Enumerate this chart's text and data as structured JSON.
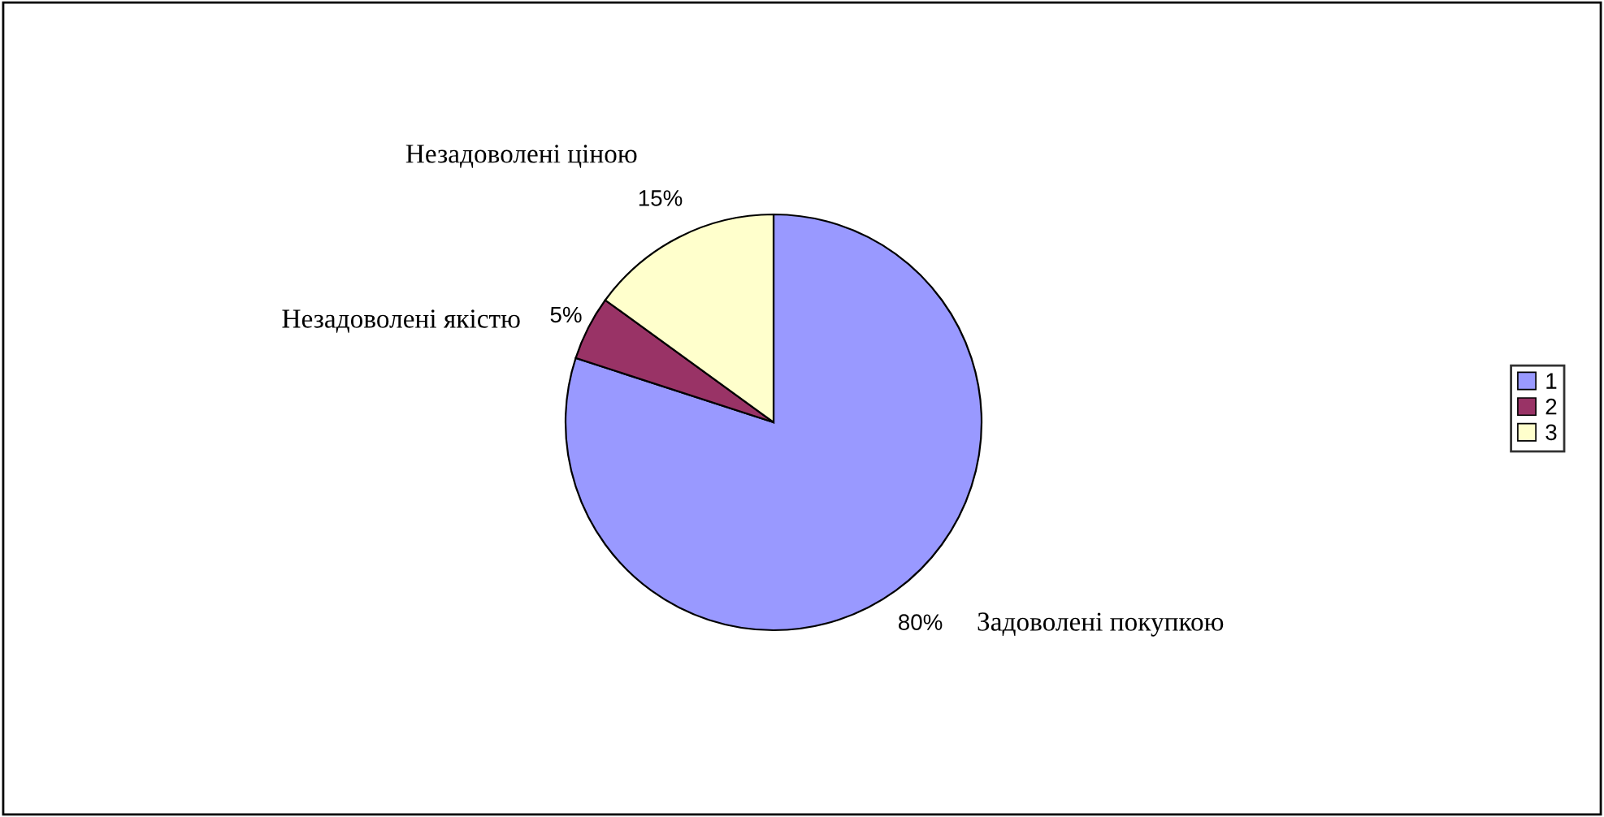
{
  "chart_data": {
    "type": "pie",
    "categories": [
      "1",
      "2",
      "3"
    ],
    "values": [
      80,
      5,
      15
    ],
    "colors": [
      "#9999ff",
      "#993366",
      "#ffffcc"
    ],
    "value_labels": [
      "80%",
      "5%",
      "15%"
    ],
    "annotations": [
      "Задоволені покупкою",
      "Незадоволені якістю",
      "Незадоволені ціною"
    ],
    "legend": "right"
  }
}
